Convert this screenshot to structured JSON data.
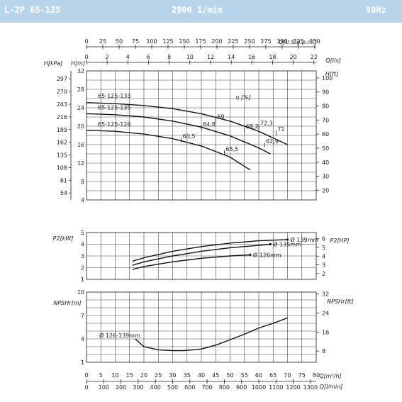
{
  "header": {
    "model": "L-2P 65-125",
    "speed": "2900 1/min",
    "frequency": "50Hz"
  },
  "chart_data": [
    {
      "type": "line",
      "name_panel": "head",
      "x_axis_top": {
        "label": "Q[U.S.g.p.m.]",
        "ticks": [
          "0",
          "25",
          "50",
          "75",
          "100",
          "125",
          "150",
          "175",
          "200",
          "225",
          "250",
          "275",
          "300",
          "325",
          "350"
        ]
      },
      "x_axis_top2": {
        "label": "Q[l/s]",
        "ticks": [
          "0",
          "2",
          "4",
          "6",
          "8",
          "10",
          "12",
          "14",
          "16",
          "18",
          "20",
          "22"
        ]
      },
      "y_left_m": {
        "label": "H[m]",
        "ticks": [
          "4",
          "8",
          "12",
          "16",
          "20",
          "24",
          "28",
          "32"
        ],
        "ylim": [
          4,
          32
        ]
      },
      "y_left_kpa": {
        "label": "H[kPa]",
        "ticks": [
          "54",
          "81",
          "108",
          "135",
          "162",
          "189",
          "216",
          "243",
          "270",
          "297"
        ]
      },
      "y_right_ft": {
        "label": "H[ft]",
        "ticks": [
          "20",
          "30",
          "40",
          "50",
          "60",
          "70",
          "80",
          "90",
          "100"
        ]
      },
      "efficiency_label": "η [%]",
      "x_unit": "m3/h",
      "series": [
        {
          "name": "65-125-133",
          "x": [
            0,
            10,
            20,
            30,
            40,
            50,
            60,
            70
          ],
          "y": [
            25.1,
            24.9,
            24.5,
            23.8,
            22.7,
            21.1,
            18.9,
            16.0
          ]
        },
        {
          "name": "65-125-135",
          "x": [
            0,
            10,
            20,
            30,
            40,
            50,
            60,
            64
          ],
          "y": [
            22.7,
            22.5,
            22.0,
            21.1,
            19.8,
            17.9,
            15.3,
            14.0
          ]
        },
        {
          "name": "65-125-126",
          "x": [
            0,
            10,
            20,
            30,
            40,
            50,
            57
          ],
          "y": [
            19.1,
            18.9,
            18.3,
            17.3,
            15.7,
            13.3,
            10.5
          ]
        }
      ],
      "efficiency_marks": [
        {
          "label": "60,5",
          "x": 33,
          "y": 17.1
        },
        {
          "label": "64,8",
          "x": 40,
          "y": 19.7
        },
        {
          "label": "69",
          "x": 45,
          "y": 21.3
        },
        {
          "label": "65,5",
          "x": 48,
          "y": 14.3
        },
        {
          "label": "68,2",
          "x": 55,
          "y": 19.2
        },
        {
          "label": "72,3",
          "x": 60,
          "y": 19.9
        },
        {
          "label": "62,9",
          "x": 62,
          "y": 16.0
        },
        {
          "label": "71",
          "x": 66,
          "y": 18.6
        }
      ]
    },
    {
      "type": "line",
      "name_panel": "power",
      "y_left": {
        "label": "P2[kW]",
        "ticks": [
          "1",
          "2",
          "3",
          "4",
          "5"
        ],
        "ylim": [
          1,
          5
        ]
      },
      "y_right": {
        "label": "P2[HP]",
        "ticks": [
          "2",
          "3",
          "4",
          "5",
          "6"
        ]
      },
      "series": [
        {
          "name": "Ø 139mm",
          "x": [
            16,
            20,
            30,
            40,
            50,
            60,
            70
          ],
          "y": [
            2.55,
            2.85,
            3.4,
            3.8,
            4.1,
            4.3,
            4.4
          ]
        },
        {
          "name": "Ø 135mm",
          "x": [
            16,
            20,
            30,
            40,
            50,
            60,
            64
          ],
          "y": [
            2.2,
            2.5,
            3.0,
            3.4,
            3.7,
            3.9,
            4.0
          ]
        },
        {
          "name": "Ø 126mm",
          "x": [
            16,
            20,
            30,
            40,
            50,
            57
          ],
          "y": [
            1.85,
            2.1,
            2.5,
            2.8,
            3.0,
            3.1
          ]
        }
      ]
    },
    {
      "type": "line",
      "name_panel": "npsh",
      "y_left": {
        "label": "NPSHr[m]",
        "ticks": [
          "1",
          "4",
          "7",
          "10"
        ],
        "ylim": [
          1,
          10
        ]
      },
      "y_right": {
        "label": "NPSHr[ft]",
        "ticks": [
          "8",
          "16",
          "24",
          "32"
        ]
      },
      "x_axis_bottom": {
        "label": "Q[m³/h]",
        "ticks": [
          "0",
          "5",
          "10",
          "15",
          "20",
          "25",
          "30",
          "35",
          "40",
          "45",
          "50",
          "55",
          "60",
          "65",
          "70",
          "75",
          "80"
        ]
      },
      "x_axis_bottom2": {
        "label": "Q[l/min]",
        "ticks": [
          "0",
          "100",
          "200",
          "300",
          "400",
          "500",
          "600",
          "700",
          "800",
          "900",
          "1000",
          "1100",
          "1200",
          "1300"
        ]
      },
      "series": [
        {
          "name": "Ø 126-139mm",
          "x": [
            17,
            20,
            25,
            30,
            34,
            40,
            45,
            50,
            55,
            60,
            65,
            70
          ],
          "y": [
            4.0,
            3.0,
            2.6,
            2.5,
            2.5,
            2.7,
            3.2,
            3.9,
            4.6,
            5.4,
            6.0,
            6.7
          ]
        }
      ]
    }
  ],
  "colors": {
    "header_bg": "#b8d4ea",
    "header_text": "#ffffff",
    "grid": "#444444",
    "curve": "#111111"
  }
}
